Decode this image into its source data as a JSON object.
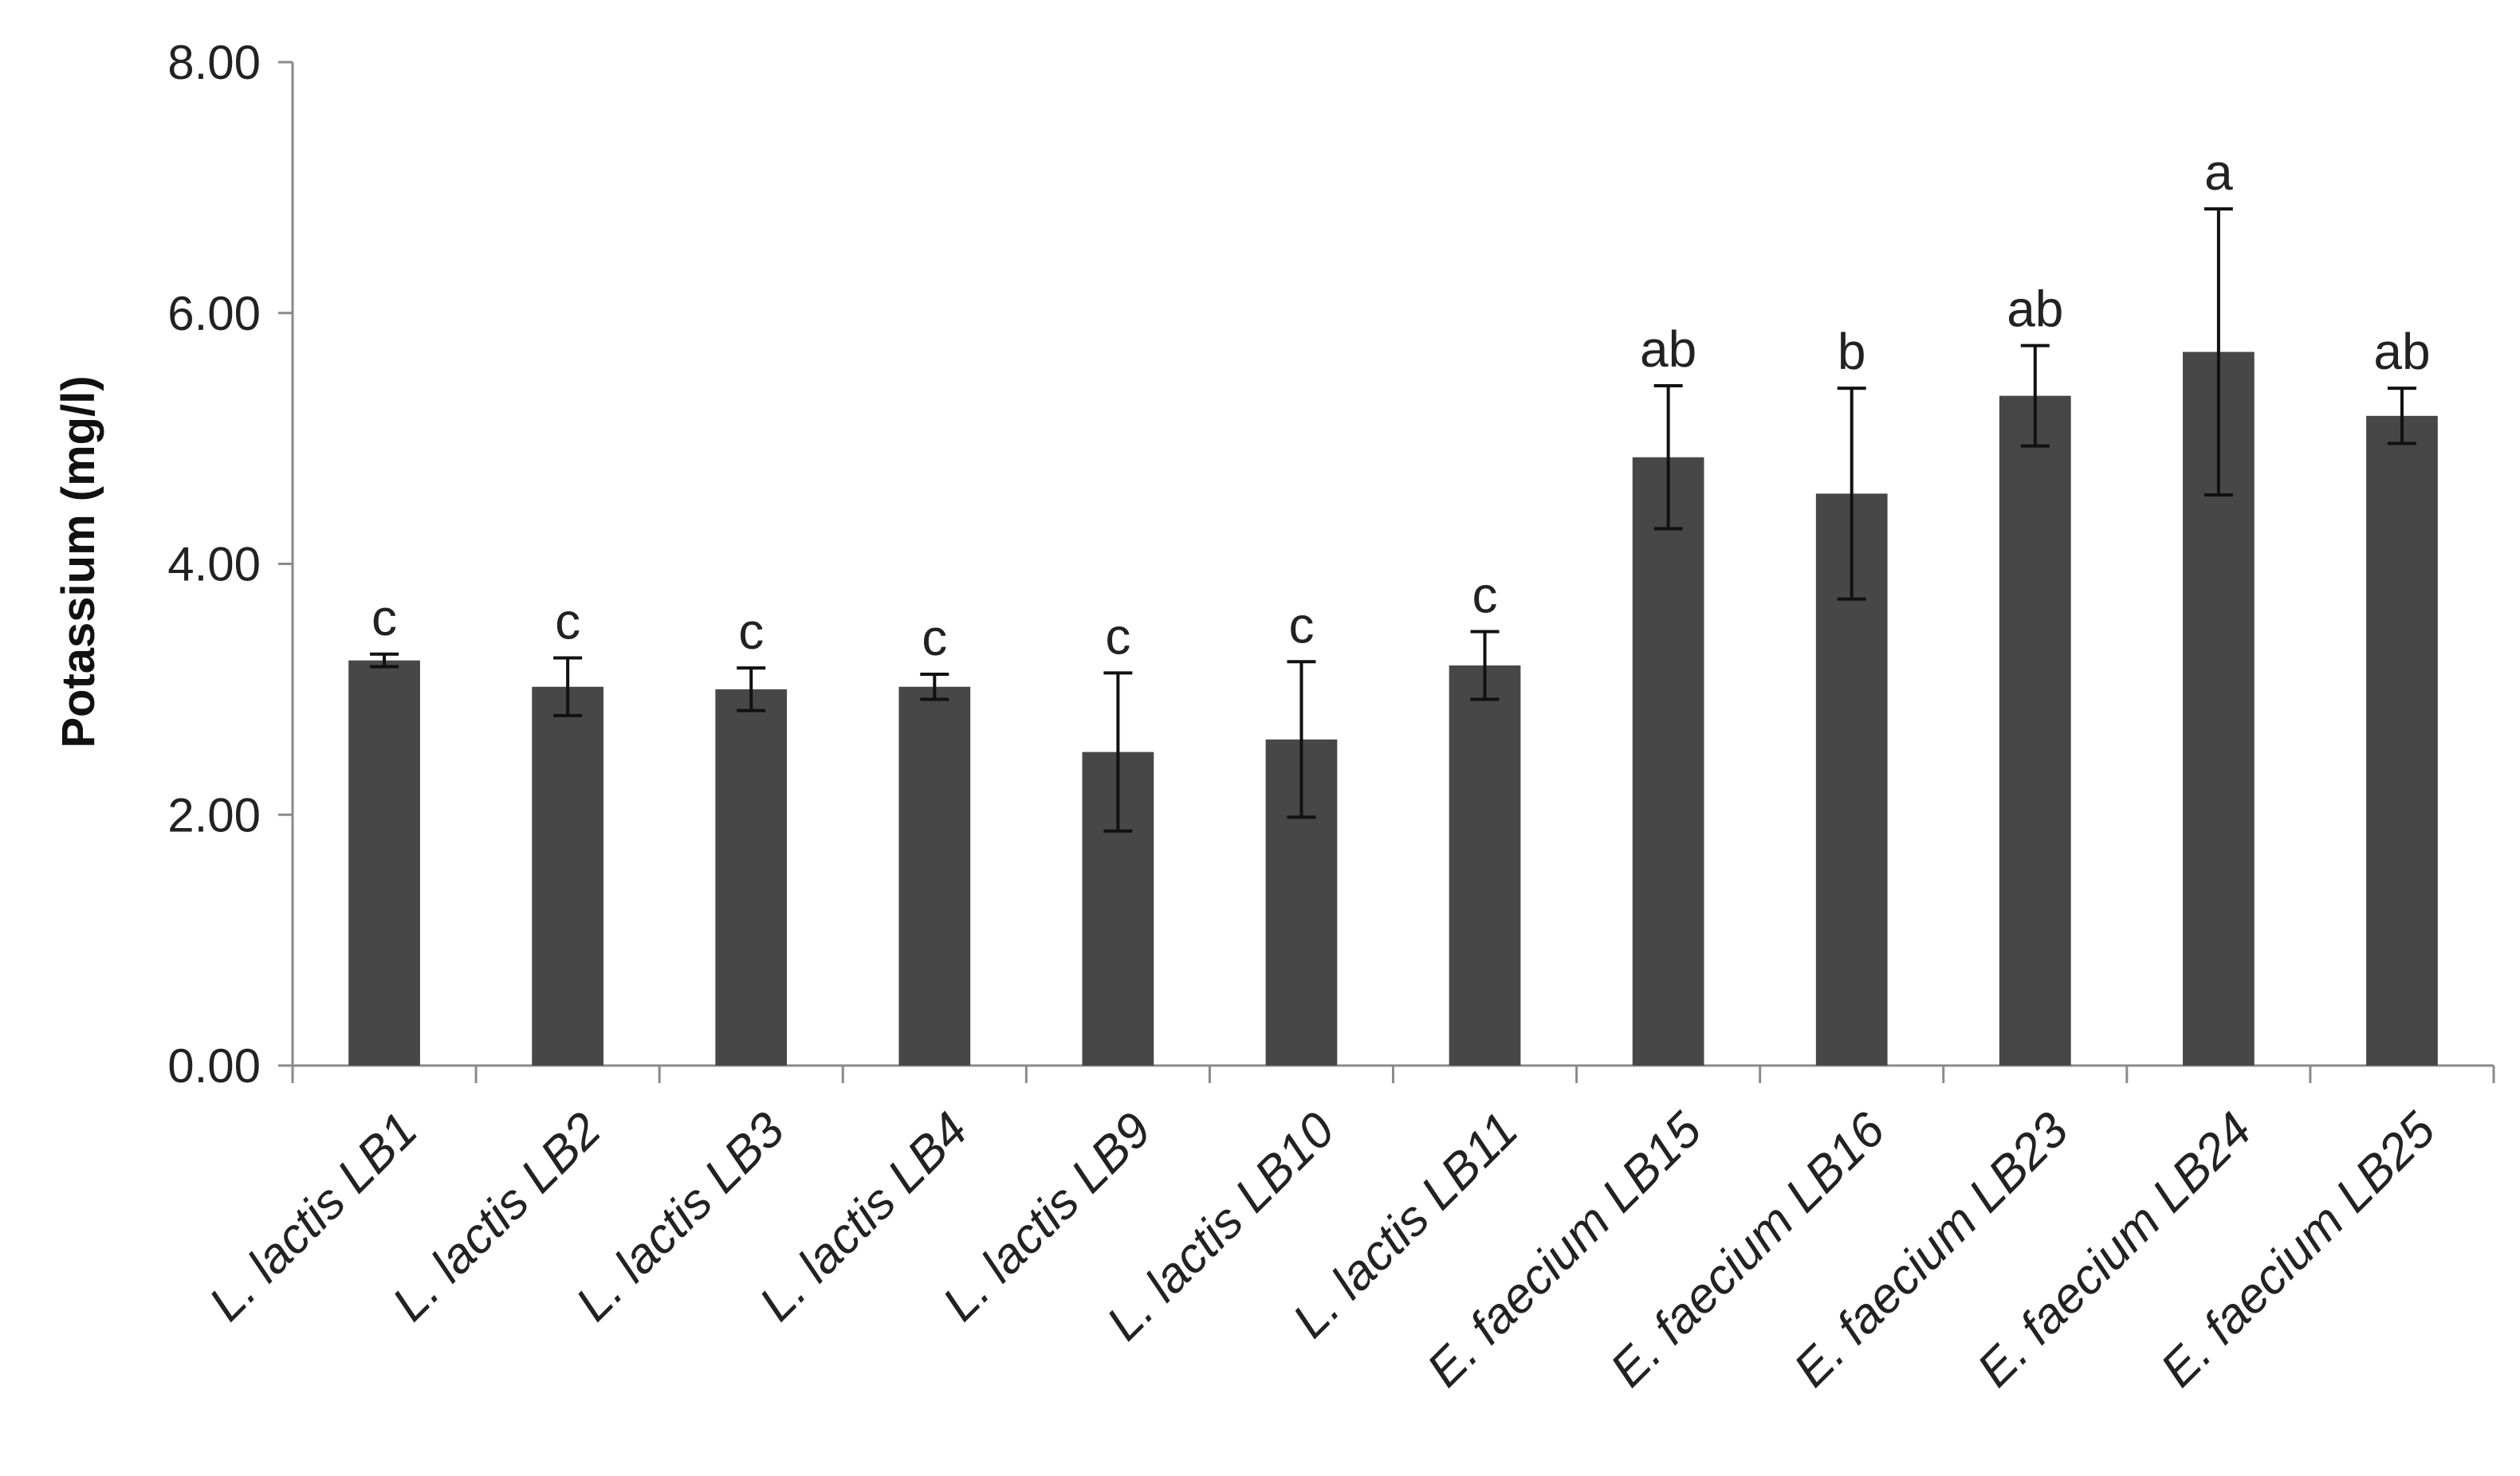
{
  "chart_data": {
    "type": "bar",
    "title": "",
    "xlabel": "",
    "ylabel": "Potassium (mg/l)",
    "ylim": [
      0,
      8
    ],
    "yticks": [
      "0.00",
      "2.00",
      "4.00",
      "6.00",
      "8.00"
    ],
    "ytick_values": [
      0,
      2,
      4,
      6,
      8
    ],
    "grid": false,
    "legend": "none",
    "bar_color": "#474747",
    "categories": [
      "L. lactis LB1",
      "L. lactis LB2",
      "L. lactis LB3",
      "L. lactis LB4",
      "L. lactis LB9",
      "L. lactis LB10",
      "L. lactis LB11",
      "E. faecium LB15",
      "E. faecium LB16",
      "E. faecium LB23",
      "E. faecium LB24",
      "E. faecium LB25"
    ],
    "values": [
      3.23,
      3.02,
      3.0,
      3.02,
      2.5,
      2.6,
      3.19,
      4.85,
      4.56,
      5.34,
      5.69,
      5.18
    ],
    "errors": [
      0.05,
      0.23,
      0.17,
      0.1,
      0.63,
      0.62,
      0.27,
      0.57,
      0.84,
      0.4,
      1.14,
      0.22
    ],
    "significance": [
      "c",
      "c",
      "c",
      "c",
      "c",
      "c",
      "c",
      "ab",
      "b",
      "ab",
      "a",
      "ab"
    ]
  }
}
